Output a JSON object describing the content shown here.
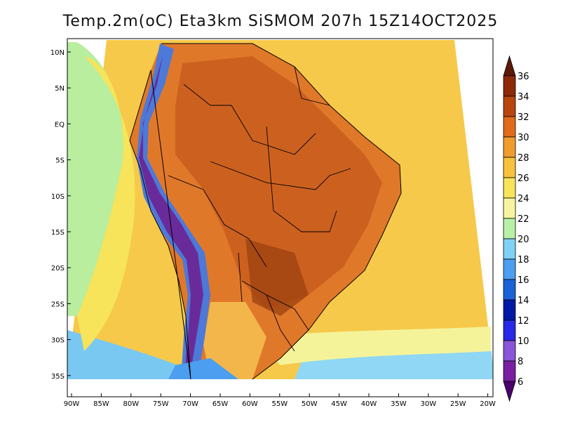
{
  "title": "Temp.2m(oC) Eta3km SiSMOM 207h 15Z14OCT2025",
  "lat_labels": [
    "10N",
    "5N",
    "EQ",
    "5S",
    "10S",
    "15S",
    "20S",
    "25S",
    "30S",
    "35S"
  ],
  "lon_labels": [
    "90W",
    "85W",
    "80W",
    "75W",
    "70W",
    "65W",
    "60W",
    "55W",
    "50W",
    "45W",
    "40W",
    "35W",
    "30W",
    "25W",
    "20W"
  ],
  "colorbar": {
    "levels": [
      "6",
      "8",
      "10",
      "12",
      "14",
      "16",
      "18",
      "20",
      "22",
      "24",
      "26",
      "28",
      "30",
      "32",
      "34",
      "36"
    ],
    "colors": [
      "#4b006e",
      "#7a1fa2",
      "#8a55d8",
      "#2828e6",
      "#0018a8",
      "#1a63d6",
      "#4b9ef0",
      "#7fd2f5",
      "#b9f0a8",
      "#f5f5a0",
      "#f7e45a",
      "#f9c23c",
      "#f19c2e",
      "#e06b1c",
      "#b9450f",
      "#8c2a08",
      "#5c1a06"
    ]
  },
  "colors": {
    "ocean": "#f7cd4f",
    "land": "#e07a26",
    "hot": "#b9541a",
    "andes": "#5a2a8c"
  }
}
